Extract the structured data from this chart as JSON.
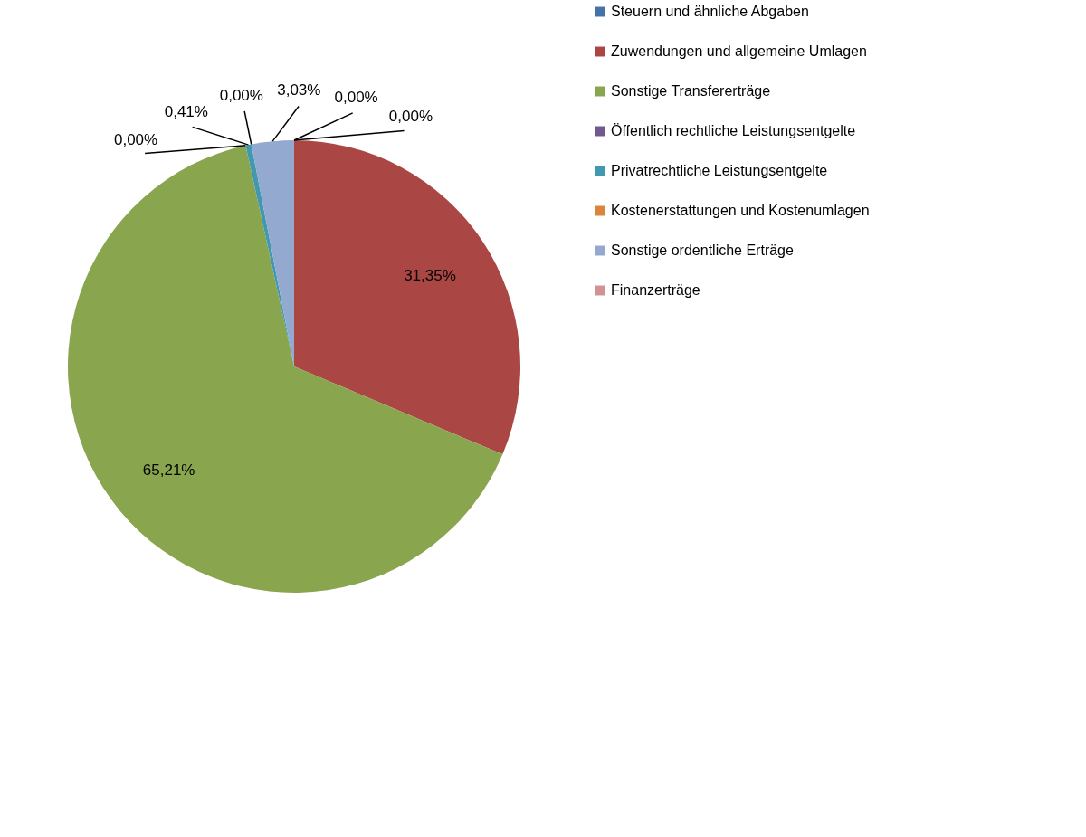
{
  "chart_data": {
    "type": "pie",
    "categories": [
      "Steuern und ähnliche Abgaben",
      "Zuwendungen und allgemeine Umlagen",
      "Sonstige Transfererträge",
      "Öffentlich rechtliche Leistungsentgelte",
      "Privatrechtliche Leistungsentgelte",
      "Kostenerstattungen und Kostenumlagen",
      "Sonstige ordentliche Erträge",
      "Finanzerträge"
    ],
    "values": [
      0.0,
      31.35,
      65.21,
      0.0,
      0.41,
      0.0,
      3.03,
      0.0
    ],
    "colors": [
      "#4572a7",
      "#aa4643",
      "#89a54e",
      "#71588f",
      "#4198af",
      "#db843d",
      "#93a9cf",
      "#d19392"
    ],
    "value_labels": [
      "0,00%",
      "31,35%",
      "65,21%",
      "0,00%",
      "0,41%",
      "0,00%",
      "3,03%",
      "0,00%"
    ],
    "legend": "right"
  }
}
